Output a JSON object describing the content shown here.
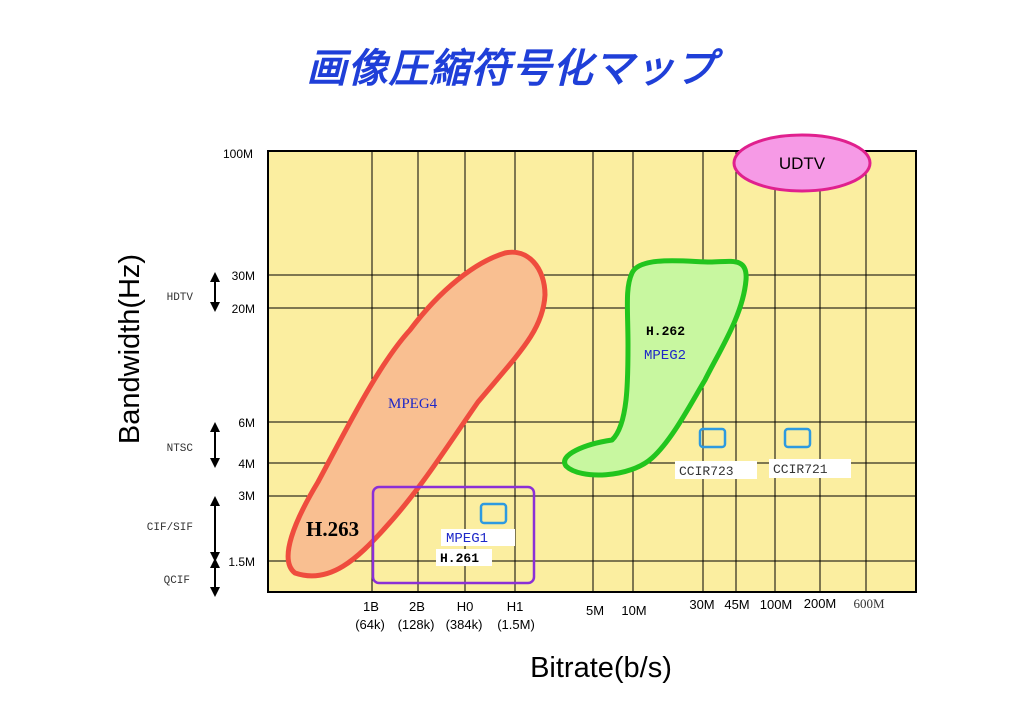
{
  "title": "画像圧縮符号化マップ",
  "axes": {
    "y_label": "Bandwidth(Hz)",
    "x_label": "Bitrate(b/s)",
    "y_ticks": [
      "100M",
      "30M",
      "20M",
      "6M",
      "4M",
      "3M",
      "1.5M"
    ],
    "y_formats": [
      "HDTV",
      "NTSC",
      "CIF/SIF",
      "QCIF"
    ],
    "x_ticks": [
      {
        "line1": "1B",
        "line2": "(64k)"
      },
      {
        "line1": "2B",
        "line2": "(128k)"
      },
      {
        "line1": "H0",
        "line2": "(384k)"
      },
      {
        "line1": "H1",
        "line2": "(1.5M)"
      },
      {
        "line1": "5M",
        "line2": ""
      },
      {
        "line1": "10M",
        "line2": ""
      },
      {
        "line1": "30M",
        "line2": ""
      },
      {
        "line1": "45M",
        "line2": ""
      },
      {
        "line1": "100M",
        "line2": ""
      },
      {
        "line1": "200M",
        "line2": ""
      },
      {
        "line1": "600M",
        "line2": ""
      }
    ]
  },
  "regions": {
    "mpeg4": "MPEG4",
    "h263": "H.263",
    "h262": "H.262",
    "mpeg2": "MPEG2",
    "mpeg1": "MPEG1",
    "h261": "H.261",
    "ccir723": "CCIR723",
    "ccir721": "CCIR721",
    "udtv": "UDTV"
  },
  "colors": {
    "plot_bg": "#fbeea0",
    "mpeg4_fill": "#f9bf91",
    "mpeg4_stroke": "#ef4c3e",
    "mpeg2_fill": "#c8f7a0",
    "mpeg2_stroke": "#22c51e",
    "mpeg1_stroke": "#8b2fd6",
    "udtv_fill": "#f69ae6",
    "udtv_stroke": "#e0208e",
    "ccir_stroke": "#2d9ae0",
    "title": "#1f3fd8",
    "label_blue": "#1e28c8"
  }
}
